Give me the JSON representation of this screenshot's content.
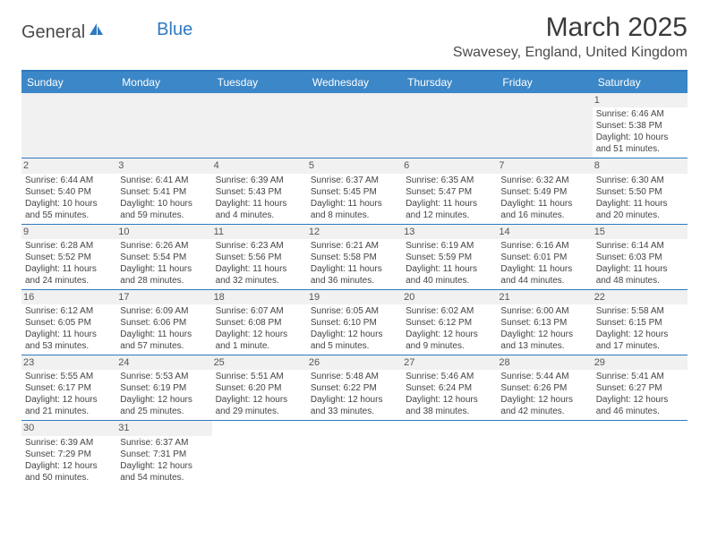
{
  "logo": {
    "part1": "General",
    "part2": "Blue"
  },
  "title": "March 2025",
  "location": "Swavesey, England, United Kingdom",
  "colors": {
    "header_bg": "#3b87c8",
    "border": "#2f7ac0",
    "daynum_bg": "#f1f1f1"
  },
  "daysOfWeek": [
    "Sunday",
    "Monday",
    "Tuesday",
    "Wednesday",
    "Thursday",
    "Friday",
    "Saturday"
  ],
  "weeks": [
    [
      null,
      null,
      null,
      null,
      null,
      null,
      {
        "n": "1",
        "sunrise": "Sunrise: 6:46 AM",
        "sunset": "Sunset: 5:38 PM",
        "daylight": "Daylight: 10 hours and 51 minutes."
      }
    ],
    [
      {
        "n": "2",
        "sunrise": "Sunrise: 6:44 AM",
        "sunset": "Sunset: 5:40 PM",
        "daylight": "Daylight: 10 hours and 55 minutes."
      },
      {
        "n": "3",
        "sunrise": "Sunrise: 6:41 AM",
        "sunset": "Sunset: 5:41 PM",
        "daylight": "Daylight: 10 hours and 59 minutes."
      },
      {
        "n": "4",
        "sunrise": "Sunrise: 6:39 AM",
        "sunset": "Sunset: 5:43 PM",
        "daylight": "Daylight: 11 hours and 4 minutes."
      },
      {
        "n": "5",
        "sunrise": "Sunrise: 6:37 AM",
        "sunset": "Sunset: 5:45 PM",
        "daylight": "Daylight: 11 hours and 8 minutes."
      },
      {
        "n": "6",
        "sunrise": "Sunrise: 6:35 AM",
        "sunset": "Sunset: 5:47 PM",
        "daylight": "Daylight: 11 hours and 12 minutes."
      },
      {
        "n": "7",
        "sunrise": "Sunrise: 6:32 AM",
        "sunset": "Sunset: 5:49 PM",
        "daylight": "Daylight: 11 hours and 16 minutes."
      },
      {
        "n": "8",
        "sunrise": "Sunrise: 6:30 AM",
        "sunset": "Sunset: 5:50 PM",
        "daylight": "Daylight: 11 hours and 20 minutes."
      }
    ],
    [
      {
        "n": "9",
        "sunrise": "Sunrise: 6:28 AM",
        "sunset": "Sunset: 5:52 PM",
        "daylight": "Daylight: 11 hours and 24 minutes."
      },
      {
        "n": "10",
        "sunrise": "Sunrise: 6:26 AM",
        "sunset": "Sunset: 5:54 PM",
        "daylight": "Daylight: 11 hours and 28 minutes."
      },
      {
        "n": "11",
        "sunrise": "Sunrise: 6:23 AM",
        "sunset": "Sunset: 5:56 PM",
        "daylight": "Daylight: 11 hours and 32 minutes."
      },
      {
        "n": "12",
        "sunrise": "Sunrise: 6:21 AM",
        "sunset": "Sunset: 5:58 PM",
        "daylight": "Daylight: 11 hours and 36 minutes."
      },
      {
        "n": "13",
        "sunrise": "Sunrise: 6:19 AM",
        "sunset": "Sunset: 5:59 PM",
        "daylight": "Daylight: 11 hours and 40 minutes."
      },
      {
        "n": "14",
        "sunrise": "Sunrise: 6:16 AM",
        "sunset": "Sunset: 6:01 PM",
        "daylight": "Daylight: 11 hours and 44 minutes."
      },
      {
        "n": "15",
        "sunrise": "Sunrise: 6:14 AM",
        "sunset": "Sunset: 6:03 PM",
        "daylight": "Daylight: 11 hours and 48 minutes."
      }
    ],
    [
      {
        "n": "16",
        "sunrise": "Sunrise: 6:12 AM",
        "sunset": "Sunset: 6:05 PM",
        "daylight": "Daylight: 11 hours and 53 minutes."
      },
      {
        "n": "17",
        "sunrise": "Sunrise: 6:09 AM",
        "sunset": "Sunset: 6:06 PM",
        "daylight": "Daylight: 11 hours and 57 minutes."
      },
      {
        "n": "18",
        "sunrise": "Sunrise: 6:07 AM",
        "sunset": "Sunset: 6:08 PM",
        "daylight": "Daylight: 12 hours and 1 minute."
      },
      {
        "n": "19",
        "sunrise": "Sunrise: 6:05 AM",
        "sunset": "Sunset: 6:10 PM",
        "daylight": "Daylight: 12 hours and 5 minutes."
      },
      {
        "n": "20",
        "sunrise": "Sunrise: 6:02 AM",
        "sunset": "Sunset: 6:12 PM",
        "daylight": "Daylight: 12 hours and 9 minutes."
      },
      {
        "n": "21",
        "sunrise": "Sunrise: 6:00 AM",
        "sunset": "Sunset: 6:13 PM",
        "daylight": "Daylight: 12 hours and 13 minutes."
      },
      {
        "n": "22",
        "sunrise": "Sunrise: 5:58 AM",
        "sunset": "Sunset: 6:15 PM",
        "daylight": "Daylight: 12 hours and 17 minutes."
      }
    ],
    [
      {
        "n": "23",
        "sunrise": "Sunrise: 5:55 AM",
        "sunset": "Sunset: 6:17 PM",
        "daylight": "Daylight: 12 hours and 21 minutes."
      },
      {
        "n": "24",
        "sunrise": "Sunrise: 5:53 AM",
        "sunset": "Sunset: 6:19 PM",
        "daylight": "Daylight: 12 hours and 25 minutes."
      },
      {
        "n": "25",
        "sunrise": "Sunrise: 5:51 AM",
        "sunset": "Sunset: 6:20 PM",
        "daylight": "Daylight: 12 hours and 29 minutes."
      },
      {
        "n": "26",
        "sunrise": "Sunrise: 5:48 AM",
        "sunset": "Sunset: 6:22 PM",
        "daylight": "Daylight: 12 hours and 33 minutes."
      },
      {
        "n": "27",
        "sunrise": "Sunrise: 5:46 AM",
        "sunset": "Sunset: 6:24 PM",
        "daylight": "Daylight: 12 hours and 38 minutes."
      },
      {
        "n": "28",
        "sunrise": "Sunrise: 5:44 AM",
        "sunset": "Sunset: 6:26 PM",
        "daylight": "Daylight: 12 hours and 42 minutes."
      },
      {
        "n": "29",
        "sunrise": "Sunrise: 5:41 AM",
        "sunset": "Sunset: 6:27 PM",
        "daylight": "Daylight: 12 hours and 46 minutes."
      }
    ],
    [
      {
        "n": "30",
        "sunrise": "Sunrise: 6:39 AM",
        "sunset": "Sunset: 7:29 PM",
        "daylight": "Daylight: 12 hours and 50 minutes."
      },
      {
        "n": "31",
        "sunrise": "Sunrise: 6:37 AM",
        "sunset": "Sunset: 7:31 PM",
        "daylight": "Daylight: 12 hours and 54 minutes."
      },
      null,
      null,
      null,
      null,
      null
    ]
  ]
}
